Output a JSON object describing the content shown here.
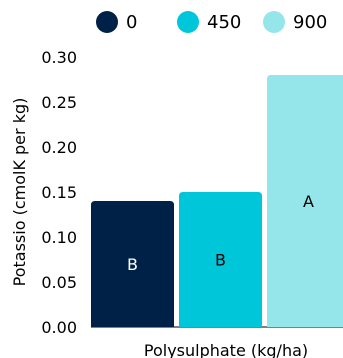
{
  "chart_data": {
    "type": "bar",
    "title": "",
    "xlabel": "Polysulphate (kg/ha)",
    "ylabel": "Potassio (cmolK per kg)",
    "ylim": [
      0,
      0.3
    ],
    "yticks": [
      "0.00",
      "0.05",
      "0.10",
      "0.15",
      "0.20",
      "0.25",
      "0.30"
    ],
    "legend_position": "top",
    "series": [
      {
        "name": "0",
        "value": 0.14,
        "label": "B",
        "color": "#002147",
        "label_color": "#ffffff"
      },
      {
        "name": "450",
        "value": 0.15,
        "label": "B",
        "color": "#00c6d9",
        "label_color": "#000000"
      },
      {
        "name": "900",
        "value": 0.28,
        "label": "A",
        "color": "#94e6ea",
        "label_color": "#000000"
      }
    ]
  }
}
